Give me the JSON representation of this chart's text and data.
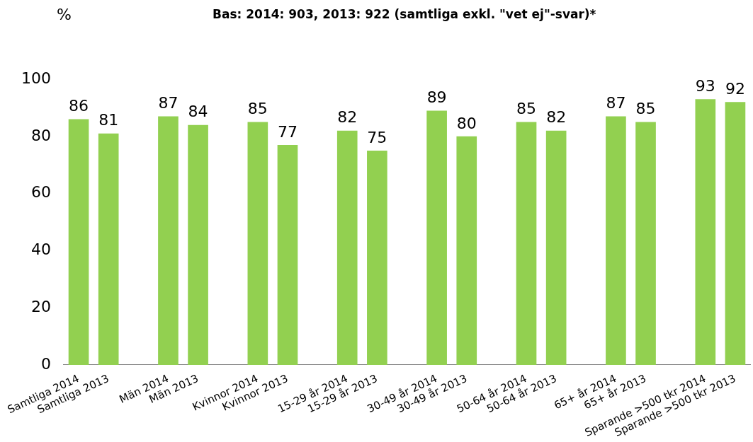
{
  "chart_data": {
    "type": "bar",
    "ylabel": "%",
    "subtitle": "Bas: 2014: 903, 2013: 922 (samtliga exkl. \"vet ej\"-svar)*",
    "categories": [
      "Samtliga 2014",
      "Samtliga 2013",
      null,
      "Män 2014",
      "Män 2013",
      null,
      "Kvinnor 2014",
      "Kvinnor 2013",
      null,
      "15-29 år 2014",
      "15-29 år 2013",
      null,
      "30-49 år 2014",
      "30-49 år 2013",
      null,
      "50-64 år 2014",
      "50-64 år 2013",
      null,
      "65+ år 2014",
      "65+ år 2013",
      null,
      "Sparande >500 tkr 2014",
      "Sparande >500 tkr 2013"
    ],
    "values": [
      86,
      81,
      null,
      87,
      84,
      null,
      85,
      77,
      null,
      82,
      75,
      null,
      89,
      80,
      null,
      85,
      82,
      null,
      87,
      85,
      null,
      93,
      92
    ],
    "color": "#92d050",
    "ylim": [
      0,
      100
    ],
    "yticks": [
      0,
      20,
      40,
      60,
      80,
      100
    ],
    "grid": false,
    "legend": false,
    "data_labels": true
  }
}
